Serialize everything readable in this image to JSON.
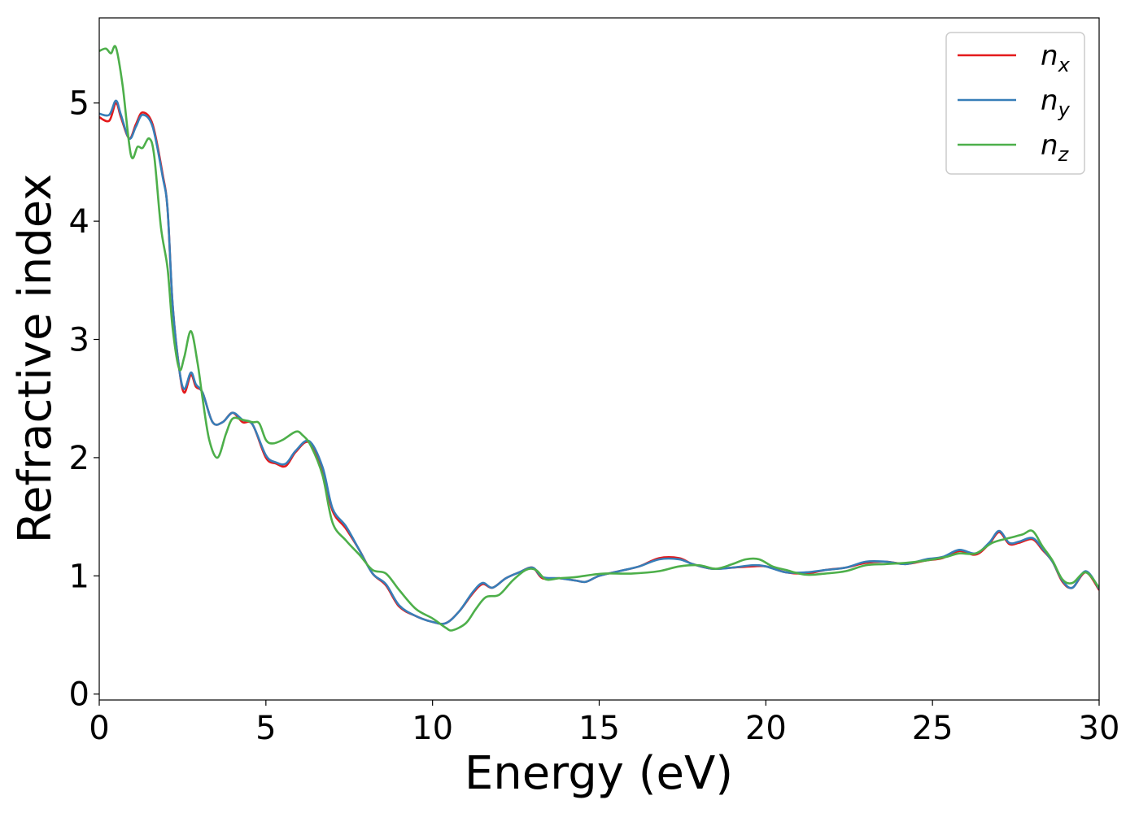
{
  "chart_data": {
    "type": "line",
    "title": "",
    "xlabel": "Energy (eV)",
    "ylabel": "Refractive index",
    "xlim": [
      0,
      30
    ],
    "ylim": [
      -0.05,
      5.72
    ],
    "xticks": [
      0,
      5,
      10,
      15,
      20,
      25,
      30
    ],
    "yticks": [
      0,
      1,
      2,
      3,
      4,
      5
    ],
    "grid": false,
    "legend_position": "top-right",
    "series": [
      {
        "name": "n_x",
        "legend_base": "n",
        "legend_sub": "x",
        "color": "#e41a1c",
        "points": [
          [
            0,
            4.88
          ],
          [
            0.3,
            4.85
          ],
          [
            0.5,
            5.0
          ],
          [
            0.65,
            4.88
          ],
          [
            0.9,
            4.7
          ],
          [
            1.1,
            4.82
          ],
          [
            1.3,
            4.92
          ],
          [
            1.6,
            4.82
          ],
          [
            1.9,
            4.4
          ],
          [
            2.05,
            4.1
          ],
          [
            2.2,
            3.3
          ],
          [
            2.4,
            2.75
          ],
          [
            2.55,
            2.55
          ],
          [
            2.75,
            2.7
          ],
          [
            2.9,
            2.6
          ],
          [
            3.1,
            2.55
          ],
          [
            3.4,
            2.3
          ],
          [
            3.7,
            2.3
          ],
          [
            4.0,
            2.38
          ],
          [
            4.3,
            2.3
          ],
          [
            4.6,
            2.28
          ],
          [
            5.0,
            2.0
          ],
          [
            5.3,
            1.95
          ],
          [
            5.6,
            1.93
          ],
          [
            5.9,
            2.05
          ],
          [
            6.3,
            2.13
          ],
          [
            6.7,
            1.9
          ],
          [
            7.0,
            1.55
          ],
          [
            7.4,
            1.4
          ],
          [
            7.8,
            1.22
          ],
          [
            8.2,
            1.02
          ],
          [
            8.6,
            0.92
          ],
          [
            9.0,
            0.74
          ],
          [
            9.5,
            0.66
          ],
          [
            10.0,
            0.61
          ],
          [
            10.4,
            0.6
          ],
          [
            10.8,
            0.7
          ],
          [
            11.2,
            0.85
          ],
          [
            11.5,
            0.93
          ],
          [
            11.8,
            0.9
          ],
          [
            12.2,
            0.98
          ],
          [
            12.6,
            1.03
          ],
          [
            13.0,
            1.07
          ],
          [
            13.3,
            0.98
          ],
          [
            13.8,
            0.98
          ],
          [
            14.3,
            0.96
          ],
          [
            14.6,
            0.95
          ],
          [
            15.0,
            1.0
          ],
          [
            15.6,
            1.04
          ],
          [
            16.2,
            1.08
          ],
          [
            16.8,
            1.15
          ],
          [
            17.4,
            1.15
          ],
          [
            17.8,
            1.1
          ],
          [
            18.4,
            1.06
          ],
          [
            19.0,
            1.07
          ],
          [
            19.6,
            1.08
          ],
          [
            20.0,
            1.08
          ],
          [
            20.6,
            1.03
          ],
          [
            21.2,
            1.02
          ],
          [
            21.8,
            1.05
          ],
          [
            22.4,
            1.07
          ],
          [
            23.0,
            1.11
          ],
          [
            23.6,
            1.12
          ],
          [
            24.2,
            1.1
          ],
          [
            24.8,
            1.13
          ],
          [
            25.3,
            1.15
          ],
          [
            25.8,
            1.21
          ],
          [
            26.3,
            1.18
          ],
          [
            26.7,
            1.27
          ],
          [
            27.0,
            1.37
          ],
          [
            27.3,
            1.27
          ],
          [
            27.6,
            1.28
          ],
          [
            28.0,
            1.31
          ],
          [
            28.3,
            1.22
          ],
          [
            28.6,
            1.12
          ],
          [
            28.9,
            0.95
          ],
          [
            29.2,
            0.9
          ],
          [
            29.6,
            1.03
          ],
          [
            30.0,
            0.88
          ]
        ]
      },
      {
        "name": "n_y",
        "legend_base": "n",
        "legend_sub": "y",
        "color": "#377eb8",
        "points": [
          [
            0,
            4.91
          ],
          [
            0.3,
            4.9
          ],
          [
            0.5,
            5.02
          ],
          [
            0.65,
            4.9
          ],
          [
            0.9,
            4.7
          ],
          [
            1.1,
            4.8
          ],
          [
            1.3,
            4.9
          ],
          [
            1.6,
            4.8
          ],
          [
            1.9,
            4.38
          ],
          [
            2.05,
            4.1
          ],
          [
            2.2,
            3.3
          ],
          [
            2.4,
            2.75
          ],
          [
            2.55,
            2.58
          ],
          [
            2.75,
            2.72
          ],
          [
            2.9,
            2.62
          ],
          [
            3.1,
            2.55
          ],
          [
            3.4,
            2.3
          ],
          [
            3.7,
            2.3
          ],
          [
            4.0,
            2.38
          ],
          [
            4.3,
            2.32
          ],
          [
            4.6,
            2.28
          ],
          [
            5.0,
            2.02
          ],
          [
            5.3,
            1.96
          ],
          [
            5.6,
            1.95
          ],
          [
            5.9,
            2.06
          ],
          [
            6.3,
            2.14
          ],
          [
            6.7,
            1.92
          ],
          [
            7.0,
            1.57
          ],
          [
            7.4,
            1.42
          ],
          [
            7.8,
            1.22
          ],
          [
            8.2,
            1.02
          ],
          [
            8.6,
            0.93
          ],
          [
            9.0,
            0.75
          ],
          [
            9.5,
            0.66
          ],
          [
            10.0,
            0.61
          ],
          [
            10.4,
            0.6
          ],
          [
            10.8,
            0.7
          ],
          [
            11.2,
            0.86
          ],
          [
            11.5,
            0.94
          ],
          [
            11.8,
            0.9
          ],
          [
            12.2,
            0.98
          ],
          [
            12.6,
            1.03
          ],
          [
            13.0,
            1.07
          ],
          [
            13.3,
            0.99
          ],
          [
            13.8,
            0.98
          ],
          [
            14.3,
            0.96
          ],
          [
            14.6,
            0.95
          ],
          [
            15.0,
            1.0
          ],
          [
            15.6,
            1.04
          ],
          [
            16.2,
            1.08
          ],
          [
            16.8,
            1.14
          ],
          [
            17.4,
            1.14
          ],
          [
            17.8,
            1.1
          ],
          [
            18.4,
            1.06
          ],
          [
            19.0,
            1.07
          ],
          [
            19.6,
            1.09
          ],
          [
            20.0,
            1.08
          ],
          [
            20.6,
            1.03
          ],
          [
            21.2,
            1.03
          ],
          [
            21.8,
            1.05
          ],
          [
            22.4,
            1.07
          ],
          [
            23.0,
            1.12
          ],
          [
            23.6,
            1.12
          ],
          [
            24.2,
            1.1
          ],
          [
            24.8,
            1.14
          ],
          [
            25.3,
            1.16
          ],
          [
            25.8,
            1.22
          ],
          [
            26.3,
            1.19
          ],
          [
            26.7,
            1.28
          ],
          [
            27.0,
            1.38
          ],
          [
            27.3,
            1.28
          ],
          [
            27.6,
            1.29
          ],
          [
            28.0,
            1.32
          ],
          [
            28.3,
            1.23
          ],
          [
            28.6,
            1.12
          ],
          [
            28.9,
            0.96
          ],
          [
            29.2,
            0.9
          ],
          [
            29.6,
            1.04
          ],
          [
            30.0,
            0.89
          ]
        ]
      },
      {
        "name": "n_z",
        "legend_base": "n",
        "legend_sub": "z",
        "color": "#4daf4a",
        "points": [
          [
            0,
            5.44
          ],
          [
            0.2,
            5.46
          ],
          [
            0.35,
            5.42
          ],
          [
            0.5,
            5.47
          ],
          [
            0.7,
            5.15
          ],
          [
            0.95,
            4.56
          ],
          [
            1.15,
            4.63
          ],
          [
            1.3,
            4.62
          ],
          [
            1.5,
            4.7
          ],
          [
            1.65,
            4.55
          ],
          [
            1.85,
            3.95
          ],
          [
            2.05,
            3.6
          ],
          [
            2.2,
            3.1
          ],
          [
            2.4,
            2.75
          ],
          [
            2.55,
            2.85
          ],
          [
            2.75,
            3.07
          ],
          [
            2.95,
            2.8
          ],
          [
            3.1,
            2.5
          ],
          [
            3.3,
            2.15
          ],
          [
            3.55,
            2.0
          ],
          [
            3.8,
            2.2
          ],
          [
            4.0,
            2.33
          ],
          [
            4.3,
            2.32
          ],
          [
            4.6,
            2.3
          ],
          [
            4.8,
            2.29
          ],
          [
            5.0,
            2.15
          ],
          [
            5.2,
            2.12
          ],
          [
            5.5,
            2.15
          ],
          [
            5.9,
            2.22
          ],
          [
            6.1,
            2.19
          ],
          [
            6.35,
            2.1
          ],
          [
            6.7,
            1.85
          ],
          [
            7.0,
            1.45
          ],
          [
            7.4,
            1.3
          ],
          [
            7.8,
            1.18
          ],
          [
            8.2,
            1.05
          ],
          [
            8.6,
            1.02
          ],
          [
            9.0,
            0.88
          ],
          [
            9.5,
            0.72
          ],
          [
            10.0,
            0.64
          ],
          [
            10.4,
            0.56
          ],
          [
            10.6,
            0.54
          ],
          [
            11.0,
            0.6
          ],
          [
            11.3,
            0.72
          ],
          [
            11.6,
            0.82
          ],
          [
            12.0,
            0.84
          ],
          [
            12.4,
            0.96
          ],
          [
            12.8,
            1.05
          ],
          [
            13.1,
            1.05
          ],
          [
            13.4,
            0.97
          ],
          [
            13.8,
            0.98
          ],
          [
            14.3,
            0.99
          ],
          [
            14.8,
            1.01
          ],
          [
            15.2,
            1.02
          ],
          [
            16.0,
            1.02
          ],
          [
            16.8,
            1.04
          ],
          [
            17.4,
            1.08
          ],
          [
            18.0,
            1.09
          ],
          [
            18.5,
            1.06
          ],
          [
            19.0,
            1.1
          ],
          [
            19.4,
            1.14
          ],
          [
            19.8,
            1.14
          ],
          [
            20.2,
            1.08
          ],
          [
            20.6,
            1.05
          ],
          [
            21.2,
            1.01
          ],
          [
            21.8,
            1.02
          ],
          [
            22.4,
            1.04
          ],
          [
            23.0,
            1.09
          ],
          [
            23.6,
            1.1
          ],
          [
            24.2,
            1.11
          ],
          [
            24.8,
            1.13
          ],
          [
            25.4,
            1.16
          ],
          [
            25.8,
            1.19
          ],
          [
            26.3,
            1.19
          ],
          [
            26.8,
            1.28
          ],
          [
            27.3,
            1.32
          ],
          [
            27.7,
            1.35
          ],
          [
            28.0,
            1.38
          ],
          [
            28.3,
            1.25
          ],
          [
            28.6,
            1.13
          ],
          [
            28.9,
            0.97
          ],
          [
            29.2,
            0.94
          ],
          [
            29.6,
            1.03
          ],
          [
            30.0,
            0.9
          ]
        ]
      }
    ]
  }
}
